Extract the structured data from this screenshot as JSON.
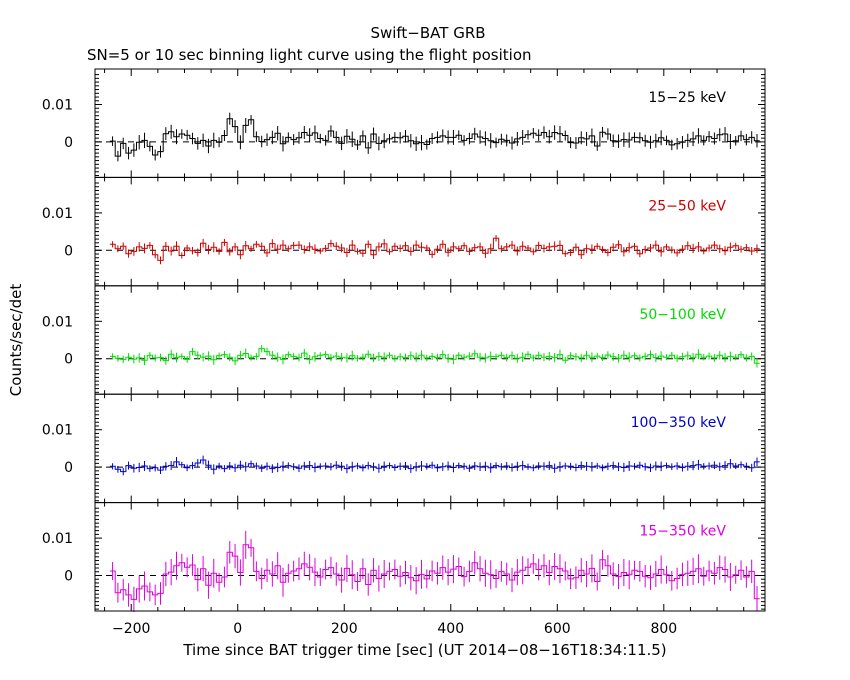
{
  "chart_data": {
    "type": "line",
    "title": "Swift−BAT GRB",
    "subtitle": "SN=5 or 10 sec binning light curve using the flight position",
    "xlabel": "Time since BAT trigger time [sec] (UT 2014−08−16T18:34:11.5)",
    "ylabel": "Counts/sec/det",
    "xlim": [
      -268,
      990
    ],
    "x_ticks": [
      -200,
      0,
      200,
      400,
      600,
      800
    ],
    "x_tick_labels": [
      "−200",
      "0",
      "200",
      "400",
      "600",
      "800"
    ],
    "y_ticks": [
      0,
      0.01
    ],
    "y_tick_labels": [
      "0",
      "0.01"
    ],
    "x_start": -240,
    "bin_width": 10,
    "panels": [
      {
        "name": "15−25 keV",
        "color": "#000000",
        "ylim": [
          -0.0095,
          0.0195
        ],
        "values": [
          0.0002,
          -0.0038,
          -0.0004,
          -0.003,
          -0.0022,
          -0.0001,
          0.0004,
          -0.0012,
          -0.0035,
          -0.0026,
          0.0022,
          0.0027,
          0.0014,
          0.0021,
          0.0018,
          0.0009,
          -0.0004,
          0.0004,
          -0.0011,
          0.0004,
          -0.0001,
          0.0017,
          0.0062,
          0.0041,
          -0.0001,
          0.0044,
          0.0059,
          0.0014,
          0.0001,
          0.0006,
          0.0012,
          0.0023,
          -0.0005,
          0.0012,
          0.0006,
          0.0011,
          0.0025,
          0.0018,
          0.0024,
          0.0009,
          0.0004,
          0.0029,
          0.0012,
          -0.0004,
          0.0015,
          0.0007,
          -0.0008,
          0.0016,
          -0.0016,
          0.0021,
          -0.0004,
          0.0003,
          0.0008,
          0.0012,
          0.0011,
          0.0015,
          0.0003,
          -0.0005,
          -0.0002,
          -0.0007,
          0.0009,
          0.0012,
          0.0016,
          0.0012,
          0.0012,
          0.0018,
          0.0004,
          0.0009,
          0.0021,
          0.0013,
          0.0009,
          0.0003,
          -0.0002,
          0.0007,
          0.0004,
          -0.0003,
          0.0008,
          0.0012,
          0.0019,
          0.0023,
          0.0018,
          0.0025,
          0.0014,
          0.0025,
          0.0022,
          0.0017,
          -0.0002,
          -0.0003,
          0.0011,
          0.0008,
          0.0016,
          -0.0011,
          0.0026,
          0.0021,
          0.0003,
          0.0002,
          0.0006,
          0.0005,
          0.0012,
          0.0011,
          0.0003,
          -0.0001,
          0.0003,
          0.0011,
          0.0004,
          -0.0008,
          -0.0005,
          -0.0001,
          0.0004,
          0.0008,
          0.0016,
          0.0004,
          0.0014,
          0.0009,
          0.0019,
          0.0021,
          0.0001,
          0.0003,
          0.0016,
          0.0006,
          0.0012,
          0.0003
        ]
      },
      {
        "name": "25−50 keV",
        "color": "#cc0000",
        "ylim": [
          -0.0095,
          0.0195
        ],
        "values": [
          0.0016,
          0.0004,
          0.0011,
          -0.0009,
          -0.0003,
          0.0009,
          0.0005,
          0.0013,
          -0.0012,
          -0.0027,
          0.0011,
          -0.0002,
          0.0011,
          -0.0014,
          0.0006,
          -0.0001,
          -0.0006,
          0.0019,
          0.0002,
          0.0008,
          -0.0003,
          0.0021,
          -0.0004,
          0.0009,
          -0.0012,
          0.0012,
          0.0004,
          0.0016,
          0.0011,
          -0.0007,
          0.0018,
          0.0003,
          0.0014,
          0.0004,
          0.0013,
          0.0014,
          0.0002,
          0.0009,
          0.0003,
          -0.0002,
          0.0005,
          0.0018,
          0.0011,
          0.0006,
          -0.0006,
          0.0014,
          -0.0003,
          -0.0008,
          0.0016,
          -0.0012,
          0.0009,
          0.0017,
          -0.0004,
          0.0011,
          0.0005,
          0.0012,
          -0.0003,
          0.0014,
          0.0008,
          0.0006,
          -0.0011,
          0.0003,
          0.0016,
          -0.0005,
          0.0009,
          0.0004,
          0.0012,
          -0.0003,
          0.0007,
          0.0009,
          -0.0008,
          0.0004,
          0.0032,
          0.0004,
          0.0009,
          0.0014,
          -0.0002,
          0.0011,
          0.0006,
          -0.0004,
          0.0013,
          0.0005,
          0.0009,
          0.0011,
          0.0013,
          -0.0009,
          -0.0006,
          0.0008,
          -0.0012,
          0.0004,
          0.0003,
          0.0011,
          0.0002,
          -0.0006,
          0.0008,
          0.0015,
          -0.0004,
          0.0007,
          0.0011,
          -0.0009,
          0.0002,
          0.0006,
          0.0014,
          -0.0004,
          0.0009,
          0.0001,
          -0.0007,
          0.0003,
          0.0012,
          0.0005,
          0.0009,
          -0.0002,
          0.0006,
          0.0014,
          0.0004,
          -0.0001,
          0.0008,
          0.0012,
          0.0003,
          0.0007,
          -0.0002,
          0.0004
        ]
      },
      {
        "name": "50−100 keV",
        "color": "#00dd00",
        "ylim": [
          -0.0095,
          0.0195
        ],
        "values": [
          0.0006,
          0.0001,
          -0.0002,
          0.0004,
          -0.0001,
          0.0002,
          -0.0004,
          0.0009,
          0.0002,
          0.0003,
          -0.0005,
          0.0012,
          0.0003,
          0.0006,
          -0.0002,
          0.0019,
          0.0009,
          0.0004,
          0.0007,
          -0.0003,
          0.0008,
          0.0011,
          0.0004,
          -0.0006,
          0.0009,
          0.0014,
          0.0003,
          0.0006,
          0.0027,
          0.0019,
          0.0009,
          0.0004,
          -0.0002,
          0.0011,
          0.0006,
          0.0003,
          0.0015,
          -0.0002,
          0.0005,
          0.0009,
          0.0011,
          0.0003,
          0.0007,
          0.0004,
          0.0002,
          0.0008,
          0.0001,
          0.0004,
          0.0012,
          0.0002,
          0.0006,
          0.0004,
          0.0009,
          0.0001,
          0.0005,
          0.0003,
          0.0008,
          0.0004,
          0.0009,
          0.0002,
          0.0006,
          0.0003,
          0.0011,
          0.0001,
          -0.0002,
          0.0009,
          0.0004,
          0.0007,
          0.0013,
          0.0004,
          0.0002,
          0.0006,
          0.0005,
          0.0009,
          0.0003,
          0.0008,
          0.0001,
          0.0004,
          0.0012,
          0.0002,
          0.0009,
          0.0004,
          0.0006,
          0.0003,
          0.0011,
          -0.0004,
          0.0008,
          0.0005,
          0.0002,
          0.0009,
          0.0004,
          0.0007,
          0.0003,
          0.001,
          0.0005,
          0.0001,
          0.0009,
          0.0004,
          0.0008,
          0.0002,
          0.0006,
          0.0011,
          0.0003,
          0.0007,
          0.0004,
          0.0009,
          0.0001,
          0.0005,
          0.0008,
          0.0003,
          0.0012,
          0.0004,
          0.0007,
          0.0002,
          0.0009,
          0.0003,
          0.0006,
          0.0004,
          0.0011,
          0.0002,
          0.0006,
          -0.0012
        ]
      },
      {
        "name": "100−350 keV",
        "color": "#0000cc",
        "ylim": [
          -0.0095,
          0.0195
        ],
        "values": [
          0.0002,
          -0.0006,
          -0.0012,
          0.0004,
          -0.0003,
          -0.0001,
          0.0003,
          -0.0004,
          -0.0002,
          -0.0008,
          0.0002,
          0.0004,
          0.0014,
          0.0006,
          -0.0002,
          0.0004,
          0.0011,
          0.0019,
          0.0005,
          -0.0006,
          0.0003,
          -0.0004,
          0.0003,
          -0.0002,
          0.0005,
          0.0001,
          0.0009,
          0.0003,
          -0.0003,
          0.0002,
          -0.0004,
          -0.0001,
          0.0002,
          0.0004,
          0.0001,
          -0.0003,
          0.0003,
          0.0004,
          -0.0001,
          0.0002,
          0.0003,
          0.0001,
          0.0005,
          0.0002,
          -0.0004,
          0.0001,
          0.0003,
          -0.0002,
          0.0004,
          0.0001,
          -0.0003,
          0.0002,
          0.0004,
          -0.0001,
          0.0002,
          0.0003,
          -0.0004,
          0.0001,
          0.0003,
          0.0002,
          0.0005,
          -0.0002,
          0.0001,
          0.0003,
          -0.0001,
          0.0004,
          0.0002,
          -0.0003,
          0.0003,
          0.0001,
          0.0002,
          -0.0002,
          0.0004,
          0.0001,
          0.0003,
          -0.0001,
          0.0002,
          0.0004,
          0.0001,
          -0.0002,
          0.0003,
          0.0002,
          0.0004,
          -0.0003,
          0.0001,
          0.0003,
          0.0002,
          -0.0001,
          0.0004,
          0.0002,
          0.0001,
          0.0003,
          -0.0002,
          0.0002,
          0.0004,
          0.0001,
          -0.0001,
          0.0003,
          0.0002,
          0.0005,
          0.0001,
          -0.0002,
          0.0003,
          0.0002,
          0.0004,
          0.0001,
          0.0003,
          -0.0001,
          0.0002,
          0.0004,
          0.0006,
          0.0002,
          0.0003,
          0.0005,
          0.0001,
          0.0004,
          0.0009,
          0.0003,
          0.0006,
          0.0002,
          -0.0002,
          0.0014
        ]
      },
      {
        "name": "15−350 keV",
        "color": "#dd00dd",
        "ylim": [
          -0.0095,
          0.0195
        ],
        "values": [
          0.0012,
          -0.0046,
          -0.0038,
          -0.0052,
          -0.0064,
          -0.0036,
          -0.0028,
          -0.0044,
          -0.0052,
          -0.0048,
          0.0004,
          0.0009,
          0.0026,
          0.0034,
          0.0022,
          0.0028,
          -0.0011,
          0.0018,
          -0.0026,
          0.0006,
          -0.0018,
          -0.0004,
          0.0062,
          0.0052,
          0.0008,
          0.0082,
          0.0074,
          0.0011,
          -0.0008,
          0.0014,
          0.0004,
          0.0026,
          -0.0018,
          0.0006,
          0.0012,
          0.0018,
          0.0031,
          0.0022,
          0.0009,
          -0.0004,
          0.0016,
          0.0021,
          0.0004,
          -0.0012,
          0.0019,
          0.0002,
          -0.0016,
          0.0018,
          -0.0024,
          0.0014,
          -0.0008,
          0.0004,
          0.0011,
          0.0016,
          -0.0002,
          0.0008,
          -0.0006,
          -0.0014,
          0.0003,
          -0.0009,
          0.0012,
          0.0006,
          0.0021,
          0.0009,
          0.0017,
          0.0024,
          -0.0003,
          0.0011,
          0.0034,
          0.0018,
          0.0006,
          0.0002,
          -0.0008,
          0.0011,
          0.0004,
          -0.0012,
          0.0009,
          0.0014,
          0.0022,
          0.0031,
          0.0016,
          0.0026,
          0.0008,
          0.0024,
          0.0018,
          0.0012,
          -0.0009,
          -0.0006,
          0.0014,
          0.0004,
          0.0019,
          -0.0016,
          0.0042,
          0.0026,
          0.0004,
          -0.0003,
          0.0008,
          0.0002,
          0.0014,
          0.0011,
          -0.0002,
          -0.0006,
          0.0004,
          0.0016,
          0.0002,
          -0.0014,
          -0.0008,
          0.0003,
          0.0006,
          0.0011,
          0.0018,
          -0.0002,
          0.0012,
          0.0006,
          0.0021,
          0.0016,
          -0.0004,
          0.0002,
          0.0014,
          -0.0004,
          0.0011,
          -0.0062
        ]
      }
    ]
  }
}
